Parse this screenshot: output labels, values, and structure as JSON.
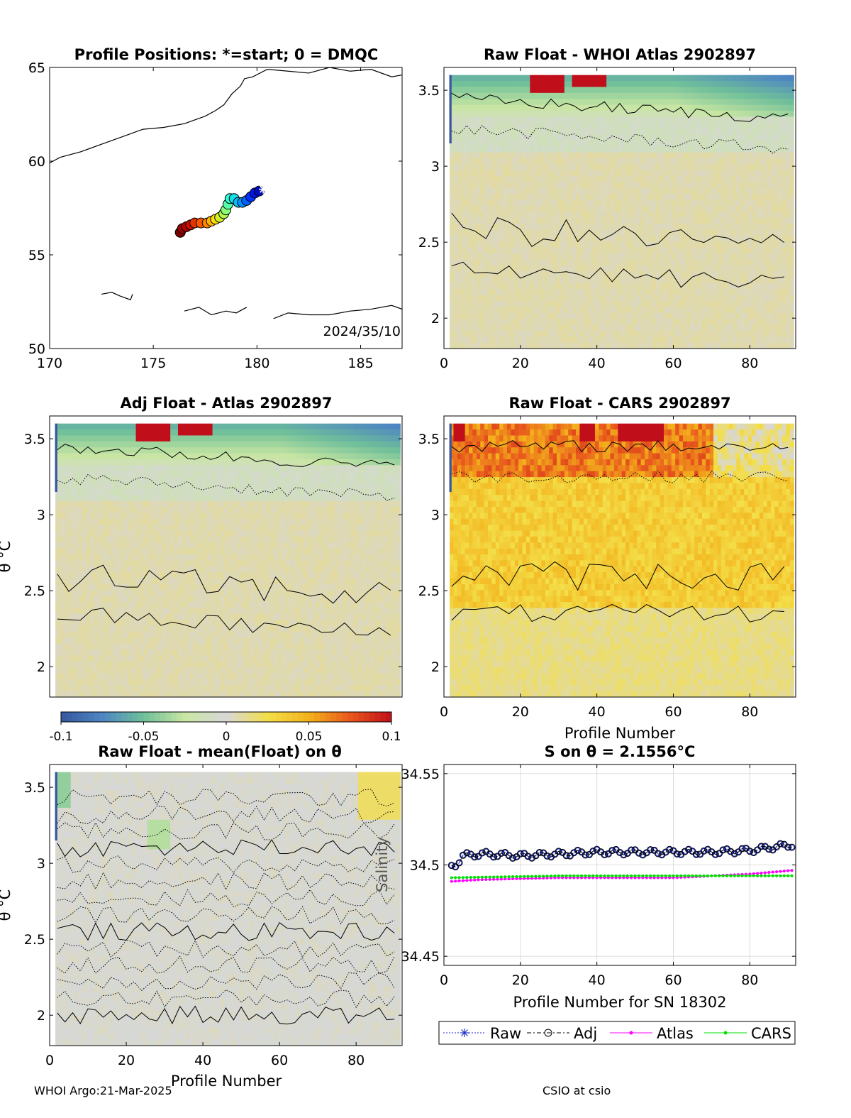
{
  "figure": {
    "footer_left": "WHOI Argo:21-Mar-2025",
    "footer_right": "CSIO at csio"
  },
  "colors": {
    "cmap": [
      "#35579e",
      "#4e86c2",
      "#6fbf9a",
      "#c8e6a2",
      "#d7d7d7",
      "#f3df4a",
      "#f3b21c",
      "#e8581c",
      "#c00e1b"
    ],
    "raw": "#2030c8",
    "adj": "#000000",
    "atlas": "#ff00ff",
    "cars": "#00e000"
  },
  "chart_data": [
    {
      "id": "map",
      "type": "scatter",
      "title": "Profile Positions: *=start; 0 = DMQC",
      "xlim": [
        170,
        187
      ],
      "ylim": [
        50,
        65
      ],
      "xticks": [
        170,
        175,
        180,
        185
      ],
      "yticks": [
        50,
        55,
        60,
        65
      ],
      "annotation": "2024/35/10",
      "track": {
        "lon": [
          180.3,
          180.1,
          179.9,
          179.7,
          179.5,
          179.3,
          179.1,
          178.9,
          178.7,
          178.6,
          178.5,
          178.4,
          178.2,
          178.0,
          177.8,
          177.6,
          177.3,
          177.0,
          176.8,
          176.6,
          176.4,
          176.3
        ],
        "lat": [
          58.5,
          58.4,
          58.3,
          58.1,
          57.9,
          57.8,
          57.8,
          58.0,
          58.0,
          57.7,
          57.4,
          57.2,
          57.0,
          56.9,
          56.8,
          56.7,
          56.7,
          56.7,
          56.6,
          56.5,
          56.4,
          56.2
        ]
      },
      "coastlines": [
        {
          "lon": [
            170.0,
            170.5,
            171.5,
            172.5,
            173.5,
            174.5,
            175.5,
            176.5,
            177.5,
            178.0,
            178.4,
            178.8,
            179.2,
            179.4,
            179.8,
            180.5,
            181.5,
            182.5,
            183.5,
            184.5,
            185.5,
            186.5,
            187.0
          ],
          "lat": [
            59.9,
            60.2,
            60.5,
            60.9,
            61.3,
            61.7,
            61.8,
            62.0,
            62.4,
            62.7,
            63.0,
            63.6,
            64.0,
            64.4,
            64.5,
            64.9,
            64.8,
            64.7,
            65.0,
            64.8,
            64.9,
            64.5,
            64.6
          ]
        },
        {
          "lon": [
            172.5,
            173.0,
            173.4,
            173.9,
            174.0
          ],
          "lat": [
            52.9,
            53.0,
            52.8,
            52.6,
            52.9
          ]
        },
        {
          "lon": [
            176.5,
            177.2,
            177.8,
            178.5,
            179.0,
            179.5
          ],
          "lat": [
            52.0,
            52.2,
            51.8,
            52.0,
            51.9,
            52.2
          ]
        },
        {
          "lon": [
            180.8,
            181.5,
            182.5,
            183.5,
            184.5,
            185.5,
            186.5,
            187.0
          ],
          "lat": [
            51.6,
            51.9,
            51.8,
            51.8,
            52.0,
            52.1,
            52.3,
            52.1
          ]
        }
      ]
    },
    {
      "id": "raw-atlas",
      "type": "heatmap",
      "title": "Raw Float - WHOI Atlas  2902897",
      "xlim": [
        0,
        92
      ],
      "ylim": [
        1.8,
        3.65
      ],
      "xticks": [
        0,
        20,
        40,
        60,
        80
      ],
      "yticks": [
        2,
        2.5,
        3,
        3.5
      ],
      "xlabel": "",
      "ylabel": ""
    },
    {
      "id": "adj-atlas",
      "type": "heatmap",
      "title": "Adj Float - Atlas  2902897",
      "xlim": [
        0,
        92
      ],
      "ylim": [
        1.8,
        3.65
      ],
      "xticks": [],
      "yticks": [
        2,
        2.5,
        3,
        3.5
      ],
      "xlabel": "",
      "ylabel": "θ °C"
    },
    {
      "id": "raw-cars",
      "type": "heatmap",
      "title": "Raw Float - CARS  2902897",
      "xlim": [
        0,
        92
      ],
      "ylim": [
        1.8,
        3.65
      ],
      "xticks": [
        0,
        20,
        40,
        60,
        80
      ],
      "yticks": [
        2,
        2.5,
        3,
        3.5
      ],
      "xlabel": "Profile Number",
      "ylabel": ""
    },
    {
      "id": "colorbar",
      "type": "heatmap",
      "clim": [
        -0.1,
        0.1
      ],
      "ticks": [
        "-0.1",
        "-0.05",
        "0",
        "0.05",
        "0.1"
      ]
    },
    {
      "id": "raw-mean",
      "type": "heatmap",
      "title": "Raw Float - mean(Float) on θ",
      "xlim": [
        0,
        92
      ],
      "ylim": [
        1.8,
        3.65
      ],
      "xticks": [
        0,
        20,
        40,
        60,
        80
      ],
      "yticks": [
        2,
        2.5,
        3,
        3.5
      ],
      "xlabel": "Profile Number",
      "ylabel": "θ °C",
      "overlay_label": "Salinity"
    },
    {
      "id": "salinity",
      "type": "line",
      "title": "S on θ = 2.1556°C",
      "xlim": [
        0,
        92
      ],
      "ylim": [
        34.445,
        34.555
      ],
      "xticks": [
        0,
        20,
        40,
        60,
        80
      ],
      "yticks": [
        34.45,
        34.5,
        34.55
      ],
      "xlabel": "Profile Number for SN 18302",
      "grid": true,
      "legend_position": "bottom",
      "legend": [
        "Raw",
        "Adj",
        "Atlas",
        "CARS"
      ],
      "series": [
        {
          "name": "Raw",
          "x_start": 2,
          "x_end": 91,
          "values_at": [
            [
              2,
              34.499
            ],
            [
              3,
              34.5
            ],
            [
              5,
              34.505
            ],
            [
              10,
              34.506
            ],
            [
              20,
              34.505
            ],
            [
              30,
              34.506
            ],
            [
              40,
              34.507
            ],
            [
              50,
              34.507
            ],
            [
              60,
              34.507
            ],
            [
              70,
              34.507
            ],
            [
              80,
              34.508
            ],
            [
              91,
              34.511
            ]
          ]
        },
        {
          "name": "Adj",
          "x_start": 2,
          "x_end": 91,
          "values_at": [
            [
              2,
              34.499
            ],
            [
              3,
              34.5
            ],
            [
              5,
              34.505
            ],
            [
              10,
              34.506
            ],
            [
              20,
              34.505
            ],
            [
              30,
              34.506
            ],
            [
              40,
              34.507
            ],
            [
              50,
              34.507
            ],
            [
              60,
              34.507
            ],
            [
              70,
              34.507
            ],
            [
              80,
              34.508
            ],
            [
              91,
              34.511
            ]
          ]
        },
        {
          "name": "Atlas",
          "x_start": 2,
          "x_end": 91,
          "values_at": [
            [
              2,
              34.491
            ],
            [
              10,
              34.492
            ],
            [
              30,
              34.493
            ],
            [
              50,
              34.493
            ],
            [
              60,
              34.493
            ],
            [
              70,
              34.494
            ],
            [
              80,
              34.495
            ],
            [
              91,
              34.497
            ]
          ]
        },
        {
          "name": "CARS",
          "x_start": 2,
          "x_end": 91,
          "values_at": [
            [
              2,
              34.493
            ],
            [
              30,
              34.494
            ],
            [
              60,
              34.494
            ],
            [
              91,
              34.494
            ]
          ]
        }
      ]
    }
  ]
}
